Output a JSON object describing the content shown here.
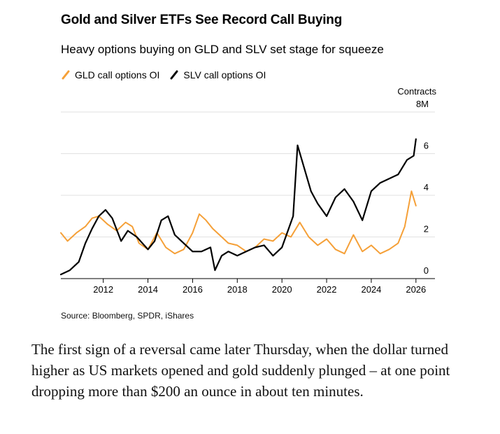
{
  "title": "Gold and Silver ETFs See Record Call Buying",
  "subtitle": "Heavy options buying on GLD and SLV set stage for squeeze",
  "source": "Source: Bloomberg, SPDR, iShares",
  "body_text": "The first sign of a reversal came later Thursday, when the dollar turned higher as US markets opened and gold suddenly plunged – at one point dropping more than $200 an ounce in about ten minutes.",
  "colors": {
    "gld": "#f5a038",
    "slv": "#000000",
    "grid": "#e2e2e2",
    "axis": "#000000"
  },
  "chart_data": {
    "type": "line",
    "title": "Gold and Silver ETFs See Record Call Buying",
    "subtitle": "Heavy options buying on GLD and SLV set stage for squeeze",
    "ylabel": "Contracts",
    "ylim": [
      0,
      8
    ],
    "y_ticks": [
      0,
      2,
      4,
      6,
      8
    ],
    "y_tick_labels": [
      "0",
      "2",
      "4",
      "6",
      "8M"
    ],
    "xlim": [
      2010.1,
      2026.1
    ],
    "x_ticks": [
      2012,
      2014,
      2016,
      2018,
      2020,
      2022,
      2024,
      2026
    ],
    "x_tick_labels": [
      "2012",
      "2014",
      "2016",
      "2018",
      "2020",
      "2022",
      "2024",
      "2026"
    ],
    "grid": true,
    "legend_position": "top-left",
    "series": [
      {
        "name": "GLD call options OI",
        "color": "#f5a038",
        "x": [
          2010.1,
          2010.4,
          2010.8,
          2011.2,
          2011.5,
          2011.8,
          2012.2,
          2012.6,
          2013.0,
          2013.3,
          2013.6,
          2014.0,
          2014.4,
          2014.8,
          2015.2,
          2015.6,
          2016.0,
          2016.3,
          2016.6,
          2016.9,
          2017.2,
          2017.6,
          2018.0,
          2018.4,
          2018.8,
          2019.2,
          2019.6,
          2020.0,
          2020.4,
          2020.8,
          2021.2,
          2021.6,
          2022.0,
          2022.4,
          2022.8,
          2023.2,
          2023.6,
          2024.0,
          2024.4,
          2024.8,
          2025.2,
          2025.5,
          2025.8,
          2026.0
        ],
        "values": [
          2.2,
          1.8,
          2.2,
          2.5,
          2.9,
          3.0,
          2.6,
          2.3,
          2.7,
          2.5,
          1.7,
          1.4,
          2.2,
          1.5,
          1.2,
          1.4,
          2.2,
          3.1,
          2.8,
          2.4,
          2.1,
          1.7,
          1.6,
          1.3,
          1.5,
          1.9,
          1.8,
          2.2,
          2.0,
          2.7,
          2.0,
          1.6,
          1.9,
          1.4,
          1.2,
          2.1,
          1.3,
          1.6,
          1.2,
          1.4,
          1.7,
          2.5,
          4.2,
          3.5
        ]
      },
      {
        "name": "SLV call options OI",
        "color": "#000000",
        "x": [
          2010.1,
          2010.5,
          2010.9,
          2011.2,
          2011.5,
          2011.8,
          2012.1,
          2012.4,
          2012.8,
          2013.1,
          2013.5,
          2014.0,
          2014.3,
          2014.6,
          2014.9,
          2015.2,
          2015.6,
          2016.0,
          2016.4,
          2016.8,
          2017.0,
          2017.3,
          2017.6,
          2018.0,
          2018.4,
          2018.8,
          2019.2,
          2019.6,
          2020.0,
          2020.3,
          2020.5,
          2020.7,
          2021.0,
          2021.3,
          2021.6,
          2022.0,
          2022.4,
          2022.8,
          2023.2,
          2023.6,
          2024.0,
          2024.4,
          2024.8,
          2025.2,
          2025.6,
          2025.9,
          2026.0
        ],
        "values": [
          0.2,
          0.4,
          0.8,
          1.7,
          2.4,
          3.0,
          3.3,
          2.9,
          1.8,
          2.3,
          2.0,
          1.4,
          1.8,
          2.8,
          3.0,
          2.1,
          1.7,
          1.3,
          1.3,
          1.5,
          0.4,
          1.1,
          1.3,
          1.1,
          1.3,
          1.5,
          1.6,
          1.1,
          1.5,
          2.4,
          3.0,
          6.4,
          5.3,
          4.2,
          3.6,
          3.0,
          3.9,
          4.3,
          3.7,
          2.8,
          4.2,
          4.6,
          4.8,
          5.0,
          5.7,
          5.9,
          6.7
        ]
      }
    ]
  }
}
